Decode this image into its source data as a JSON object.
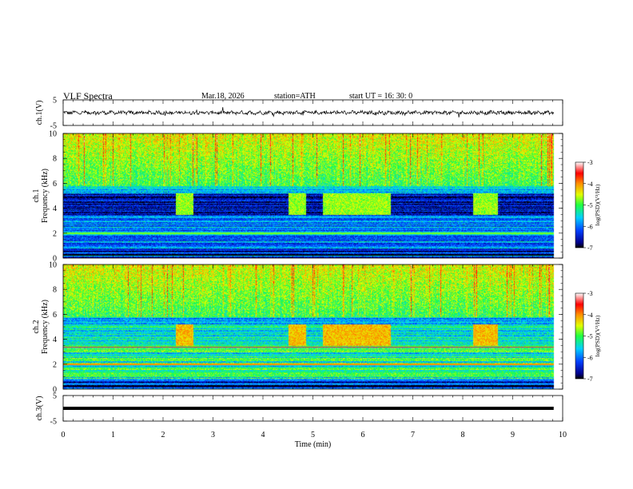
{
  "header": {
    "title": "VLF  Spectra",
    "date": "Mar.18, 2026",
    "station": "station=ATH",
    "start_ut": "start  UT  =   16: 30: 0"
  },
  "colorbar": {
    "label": "log(PSD)(V²/Hz)",
    "ticks": [
      "-3",
      "-4",
      "-5",
      "-6",
      "-7"
    ]
  },
  "chart_data": [
    {
      "type": "line",
      "name": "ch1-waveform",
      "ylabel": "ch.1(V)",
      "ylim": [
        -5,
        5
      ],
      "yticks": [
        "5",
        "-5"
      ],
      "description_values": {
        "mean": 0,
        "amplitude": 0.8
      }
    },
    {
      "type": "heatmap",
      "name": "ch1-spectrogram",
      "ylabel_channel": "ch.1",
      "ylabel": "Frequency  (kHz)",
      "ylim": [
        0,
        10
      ],
      "yticks": [
        "0",
        "2",
        "4",
        "6",
        "8",
        "10"
      ],
      "xlim": [
        0,
        10
      ],
      "colorscale": {
        "min": -7,
        "max": -3
      },
      "bursts_min": [
        [
          2.25,
          2.6
        ],
        [
          4.5,
          4.85
        ],
        [
          5.2,
          6.55
        ],
        [
          8.2,
          8.7
        ]
      ],
      "data_end_min": 9.82
    },
    {
      "type": "heatmap",
      "name": "ch2-spectrogram",
      "ylabel_channel": "ch.2",
      "ylabel": "Frequency  (kHz)",
      "ylim": [
        0,
        10
      ],
      "yticks": [
        "0",
        "2",
        "4",
        "6",
        "8",
        "10"
      ],
      "xlim": [
        0,
        10
      ],
      "colorscale": {
        "min": -7,
        "max": -3
      },
      "bursts_min": [
        [
          2.25,
          2.6
        ],
        [
          4.5,
          4.85
        ],
        [
          5.2,
          6.55
        ],
        [
          8.2,
          8.7
        ]
      ],
      "data_end_min": 9.82
    },
    {
      "type": "line",
      "name": "ch3-waveform",
      "ylabel": "ch.3(V)",
      "ylim": [
        -5,
        5
      ],
      "yticks": [
        "5",
        "-5"
      ],
      "description_values": {
        "mean": 0,
        "amplitude": 0.1
      },
      "xlabel": "Time  (min)",
      "xlim": [
        0,
        10
      ],
      "xticks": [
        "0",
        "1",
        "2",
        "3",
        "4",
        "5",
        "6",
        "7",
        "8",
        "9",
        "10"
      ]
    }
  ]
}
